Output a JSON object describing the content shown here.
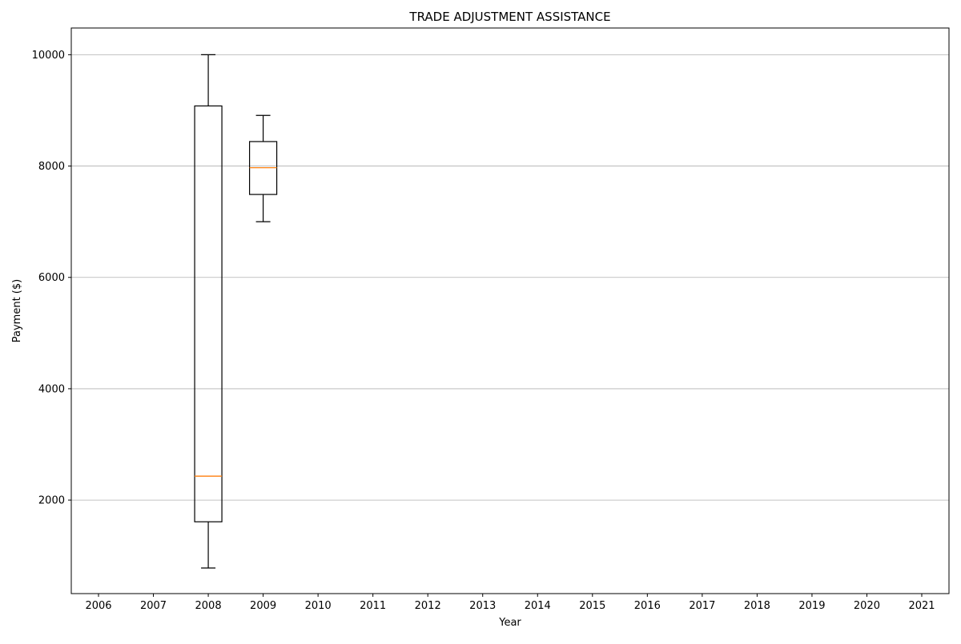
{
  "chart_data": {
    "type": "box",
    "title": "TRADE ADJUSTMENT ASSISTANCE",
    "xlabel": "Year",
    "ylabel": "Payment ($)",
    "categories": [
      "2006",
      "2007",
      "2008",
      "2009",
      "2010",
      "2011",
      "2012",
      "2013",
      "2014",
      "2015",
      "2016",
      "2017",
      "2018",
      "2019",
      "2020",
      "2021"
    ],
    "yticks": [
      2000,
      4000,
      6000,
      8000,
      10000
    ],
    "ylim": [
      320,
      10480
    ],
    "grid": "y",
    "colors": {
      "box": "#000000",
      "median": "#ff7f0e",
      "grid": "#b0b0b0"
    },
    "boxes": [
      {
        "category": "2008",
        "whisker_low": 780,
        "q1": 1610,
        "median": 2430,
        "q3": 9080,
        "whisker_high": 10000
      },
      {
        "category": "2009",
        "whisker_low": 7000,
        "q1": 7490,
        "median": 7970,
        "q3": 8440,
        "whisker_high": 8910
      }
    ]
  }
}
